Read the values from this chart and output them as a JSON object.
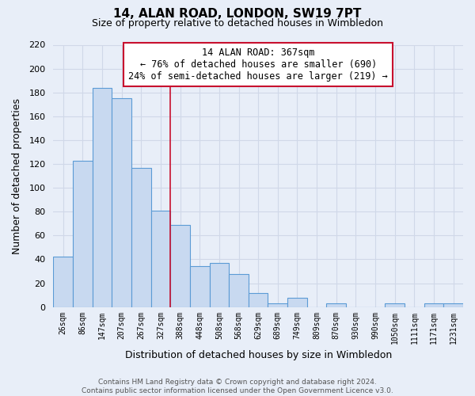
{
  "title": "14, ALAN ROAD, LONDON, SW19 7PT",
  "subtitle": "Size of property relative to detached houses in Wimbledon",
  "xlabel": "Distribution of detached houses by size in Wimbledon",
  "ylabel": "Number of detached properties",
  "categories": [
    "26sqm",
    "86sqm",
    "147sqm",
    "207sqm",
    "267sqm",
    "327sqm",
    "388sqm",
    "448sqm",
    "508sqm",
    "568sqm",
    "629sqm",
    "689sqm",
    "749sqm",
    "809sqm",
    "870sqm",
    "930sqm",
    "990sqm",
    "1050sqm",
    "1111sqm",
    "1171sqm",
    "1231sqm"
  ],
  "values": [
    42,
    123,
    184,
    175,
    117,
    81,
    69,
    34,
    37,
    28,
    12,
    3,
    8,
    0,
    3,
    0,
    0,
    3,
    0,
    3,
    3
  ],
  "bar_fill": "#c8d9f0",
  "bar_edge": "#5b9bd5",
  "annotation_box_color": "#c8102e",
  "annotation_title": "14 ALAN ROAD: 367sqm",
  "annotation_line1": "← 76% of detached houses are smaller (690)",
  "annotation_line2": "24% of semi-detached houses are larger (219) →",
  "vline_color": "#c8102e",
  "vline_x_index": 5.5,
  "ylim": [
    0,
    220
  ],
  "yticks": [
    0,
    20,
    40,
    60,
    80,
    100,
    120,
    140,
    160,
    180,
    200,
    220
  ],
  "bg_color": "#e8eef8",
  "grid_color": "#d0d8e8",
  "footer_line1": "Contains HM Land Registry data © Crown copyright and database right 2024.",
  "footer_line2": "Contains public sector information licensed under the Open Government Licence v3.0."
}
